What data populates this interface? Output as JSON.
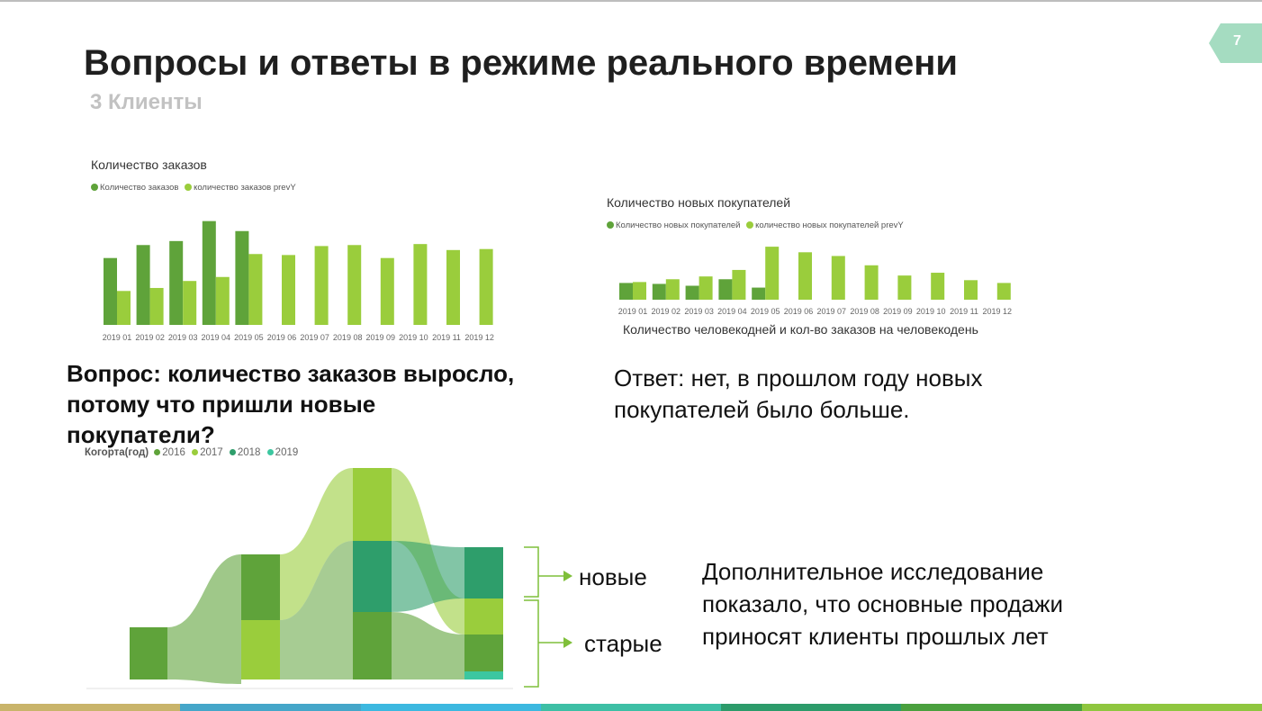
{
  "slide": {
    "page_number": "7",
    "title": "Вопросы и ответы в режиме реального времени",
    "subtitle": "3 Клиенты"
  },
  "question": {
    "line1": "Вопрос: количество заказов выросло,",
    "line2": "потому что пришли новые",
    "line3": "покупатели?"
  },
  "answer": {
    "line1": "Ответ: нет, в прошлом году новых",
    "line2": "покупателей было больше."
  },
  "note": {
    "line1": "Дополнительное исследование",
    "line2": "показало, что основные продажи",
    "line3": "приносят клиенты прошлых лет"
  },
  "arrows": {
    "new_label": "новые",
    "old_label": "старые"
  },
  "sankey_caption": "Количество человекодней и кол-во заказов на человекодень",
  "colors": {
    "current": "#5fa33a",
    "previous": "#9acd3c",
    "c2016": "#5fa33a",
    "c2017": "#9acd3c",
    "c2018": "#2e9e6b",
    "c2019": "#3cc7a0",
    "page_tab": "#a5dcc1"
  },
  "bottom_bar_colors": [
    "#c9b46a",
    "#45a6c9",
    "#3cb8e0",
    "#3dbfa5",
    "#2c9b6a",
    "#4aa03e",
    "#8fc63f"
  ],
  "chart_data": [
    {
      "type": "bar",
      "title": "Количество заказов",
      "categories": [
        "2019 01",
        "2019 02",
        "2019 03",
        "2019 04",
        "2019 05",
        "2019 06",
        "2019 07",
        "2019 08",
        "2019 09",
        "2019 10",
        "2019 11",
        "2019 12"
      ],
      "series": [
        {
          "name": "Количество заказов",
          "values": [
            67,
            80,
            84,
            104,
            94,
            null,
            null,
            null,
            null,
            null,
            null,
            null
          ]
        },
        {
          "name": "количество заказов prevY",
          "values": [
            34,
            37,
            44,
            48,
            71,
            70,
            79,
            80,
            67,
            81,
            75,
            76
          ]
        }
      ],
      "ylim": [
        0,
        110
      ],
      "legend": "top-left",
      "grid": false
    },
    {
      "type": "bar",
      "title": "Количество новых покупателей",
      "categories": [
        "2019 01",
        "2019 02",
        "2019 03",
        "2019 04",
        "2019 05",
        "2019 06",
        "2019 07",
        "2019 08",
        "2019 09",
        "2019 10",
        "2019 11",
        "2019 12"
      ],
      "series": [
        {
          "name": "Количество новых покупателей",
          "values": [
            18,
            17,
            15,
            22,
            13,
            null,
            null,
            null,
            null,
            null,
            null,
            null
          ]
        },
        {
          "name": "количество новых покупателей prevY",
          "values": [
            19,
            22,
            25,
            32,
            57,
            51,
            47,
            37,
            26,
            29,
            21,
            18
          ]
        }
      ],
      "ylim": [
        0,
        60
      ],
      "legend": "top-left",
      "grid": false
    },
    {
      "type": "sankey",
      "legend_title": "Когорта(год)",
      "legend": [
        "2016",
        "2017",
        "2018",
        "2019"
      ],
      "columns": [
        "2016",
        "2017",
        "2018",
        "2019"
      ]
    }
  ]
}
